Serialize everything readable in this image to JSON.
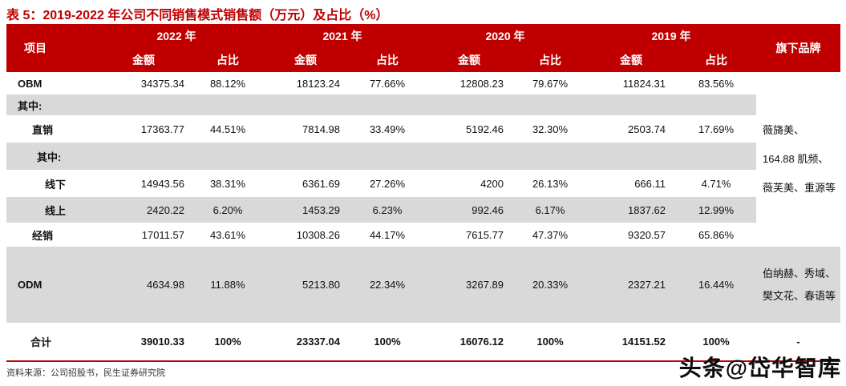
{
  "title": "表 5：2019-2022 年公司不同销售模式销售额（万元）及占比（%）",
  "colors": {
    "header_red": "#C00000",
    "row_gray": "#D9D9D9"
  },
  "header": {
    "item": "项目",
    "brands": "旗下品牌",
    "amount": "金额",
    "share": "占比",
    "years": [
      "2022 年",
      "2021 年",
      "2020 年",
      "2019 年"
    ]
  },
  "table": {
    "rows": [
      {
        "label": "OBM",
        "values": [
          "34375.34",
          "88.12%",
          "18123.24",
          "77.66%",
          "12808.23",
          "79.67%",
          "11824.31",
          "83.56%"
        ]
      },
      {
        "label": "其中:",
        "values": [
          "",
          "",
          "",
          "",
          "",
          "",
          "",
          ""
        ]
      },
      {
        "label": "直销",
        "values": [
          "17363.77",
          "44.51%",
          "7814.98",
          "33.49%",
          "5192.46",
          "32.30%",
          "2503.74",
          "17.69%"
        ]
      },
      {
        "label": "其中:",
        "values": [
          "",
          "",
          "",
          "",
          "",
          "",
          "",
          ""
        ]
      },
      {
        "label": "线下",
        "values": [
          "14943.56",
          "38.31%",
          "6361.69",
          "27.26%",
          "4200",
          "26.13%",
          "666.11",
          "4.71%"
        ]
      },
      {
        "label": "线上",
        "values": [
          "2420.22",
          "6.20%",
          "1453.29",
          "6.23%",
          "992.46",
          "6.17%",
          "1837.62",
          "12.99%"
        ]
      },
      {
        "label": "经销",
        "values": [
          "17011.57",
          "43.61%",
          "10308.26",
          "44.17%",
          "7615.77",
          "47.37%",
          "9320.57",
          "65.86%"
        ]
      },
      {
        "label": "ODM",
        "values": [
          "4634.98",
          "11.88%",
          "5213.80",
          "22.34%",
          "3267.89",
          "20.33%",
          "2327.21",
          "16.44%"
        ]
      },
      {
        "label": "合计",
        "values": [
          "39010.33",
          "100%",
          "23337.04",
          "100%",
          "16076.12",
          "100%",
          "14151.52",
          "100%"
        ]
      }
    ]
  },
  "brands": {
    "obm": "薇旖美、164.88 肌频、薇芙美、重源等",
    "odm": "伯纳赫、秀域、樊文花、春语等",
    "total": "-"
  },
  "footer": {
    "source": "资料来源：公司招股书，民生证券研究院"
  },
  "watermark": "头条@岱华智库"
}
